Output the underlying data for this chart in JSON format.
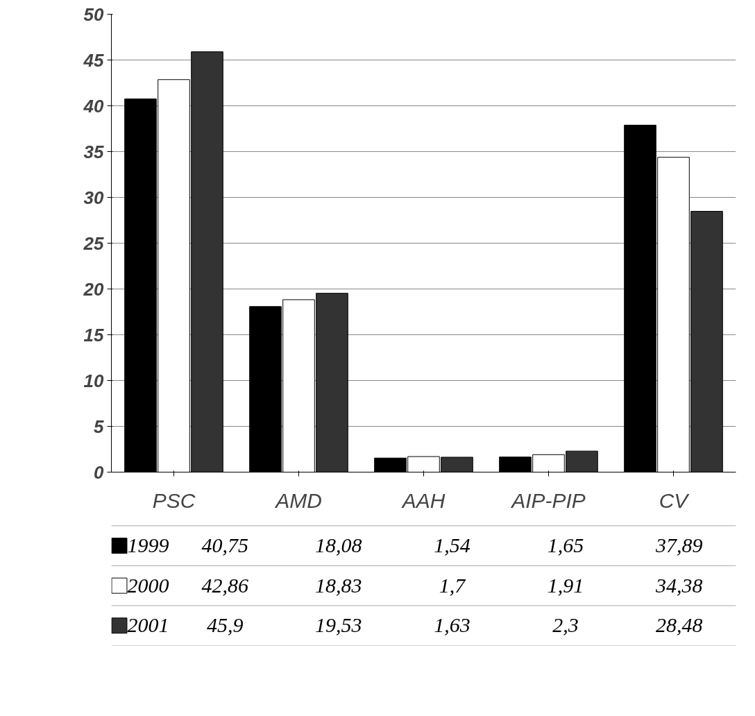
{
  "chart_data": {
    "type": "bar",
    "categories": [
      "PSC",
      "AMD",
      "AAH",
      "AIP-PIP",
      "CV"
    ],
    "series": [
      {
        "name": "1999",
        "color": "#000000",
        "values": [
          40.75,
          18.08,
          1.54,
          1.65,
          37.89
        ],
        "value_labels": [
          "40,75",
          "18,08",
          "1,54",
          "1,65",
          "37,89"
        ]
      },
      {
        "name": "2000",
        "color": "#ffffff",
        "values": [
          42.86,
          18.83,
          1.7,
          1.91,
          34.38
        ],
        "value_labels": [
          "42,86",
          "18,83",
          "1,7",
          "1,91",
          "34,38"
        ]
      },
      {
        "name": "2001",
        "color": "#333333",
        "values": [
          45.9,
          19.53,
          1.63,
          2.3,
          28.48
        ],
        "value_labels": [
          "45,9",
          "19,53",
          "1,63",
          "2,3",
          "28,48"
        ]
      }
    ],
    "ylim": [
      0,
      50
    ],
    "yticks": [
      0,
      5,
      10,
      15,
      20,
      25,
      30,
      35,
      40,
      45,
      50
    ],
    "grid": "y",
    "legend": "bottom"
  }
}
